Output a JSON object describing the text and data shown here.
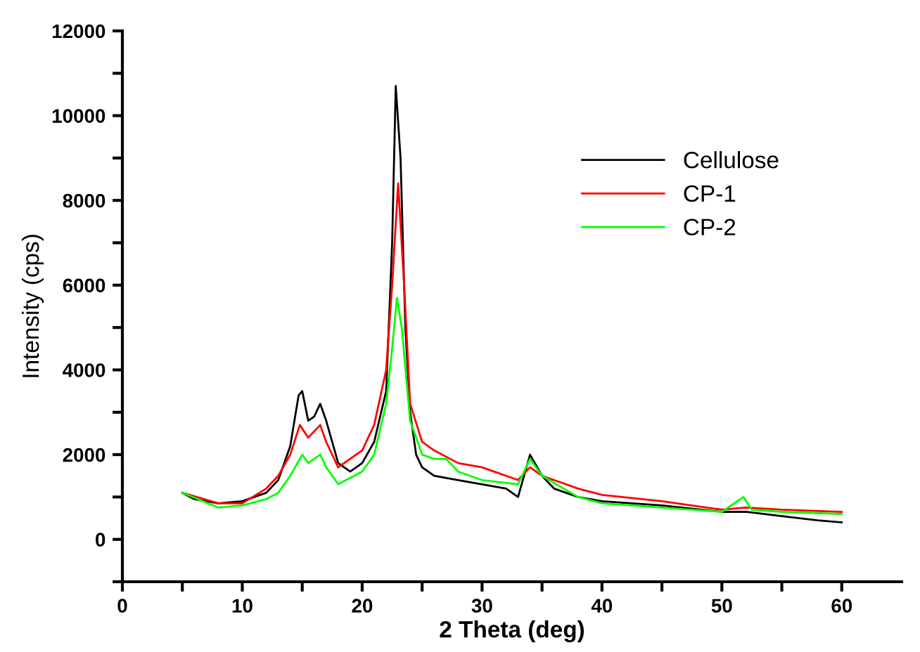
{
  "chart_data": {
    "type": "line",
    "xlabel": "2 Theta (deg)",
    "ylabel": "Intensity (cps)",
    "xlim": [
      0,
      65
    ],
    "ylim": [
      -1000,
      12000
    ],
    "xticks": [
      0,
      {
        "value": 5,
        "label": null
      },
      10,
      {
        "value": 15,
        "label": null
      },
      20,
      {
        "value": 25,
        "label": null
      },
      30,
      {
        "value": 35,
        "label": null
      },
      40,
      {
        "value": 45,
        "label": null
      },
      50,
      {
        "value": 55,
        "label": null
      },
      60
    ],
    "yticks": [
      {
        "value": -1000,
        "label": null
      },
      0,
      {
        "value": 1000,
        "label": null
      },
      2000,
      {
        "value": 3000,
        "label": null
      },
      4000,
      {
        "value": 5000,
        "label": null
      },
      6000,
      {
        "value": 7000,
        "label": null
      },
      8000,
      {
        "value": 9000,
        "label": null
      },
      10000,
      {
        "value": 11000,
        "label": null
      },
      12000
    ],
    "grid": false,
    "legend": "top right",
    "marker": "none",
    "line_style": "solid",
    "series": [
      {
        "name": "Cellulose",
        "color": "#000000",
        "x": [
          5,
          6,
          8,
          10,
          12,
          13,
          14,
          14.7,
          15,
          15.5,
          16,
          16.5,
          17,
          18,
          19,
          20,
          21,
          22,
          22.5,
          22.8,
          23.2,
          23.6,
          24,
          24.5,
          25,
          26,
          28,
          30,
          32,
          33,
          34,
          35,
          36,
          38,
          40,
          45,
          50,
          52,
          55,
          58,
          60
        ],
        "values": [
          1100,
          950,
          850,
          900,
          1100,
          1400,
          2200,
          3400,
          3500,
          2800,
          2900,
          3200,
          2800,
          1800,
          1600,
          1800,
          2300,
          3500,
          7000,
          10700,
          9000,
          5000,
          3000,
          2000,
          1700,
          1500,
          1400,
          1300,
          1200,
          1000,
          2000,
          1500,
          1200,
          1000,
          900,
          800,
          650,
          650,
          550,
          450,
          400
        ]
      },
      {
        "name": "CP-1",
        "color": "#ff0000",
        "x": [
          5,
          8,
          10,
          12,
          13,
          14,
          14.8,
          15.5,
          16.5,
          17,
          18,
          20,
          21,
          22,
          22.5,
          23,
          23.5,
          24,
          25,
          26,
          28,
          30,
          33,
          34,
          35,
          38,
          40,
          45,
          50,
          52,
          55,
          60
        ],
        "values": [
          1100,
          850,
          850,
          1200,
          1500,
          2000,
          2700,
          2400,
          2700,
          2300,
          1700,
          2100,
          2700,
          4000,
          6000,
          8400,
          6000,
          3200,
          2300,
          2100,
          1800,
          1700,
          1400,
          1700,
          1500,
          1200,
          1050,
          900,
          700,
          750,
          700,
          650
        ]
      },
      {
        "name": "CP-2",
        "color": "#00ff00",
        "x": [
          5,
          8,
          10,
          12,
          13,
          14,
          15,
          15.5,
          16.5,
          17,
          18,
          20,
          21,
          22,
          22.5,
          22.9,
          23.3,
          24,
          25,
          26,
          27,
          28,
          30,
          33,
          34,
          35,
          38,
          40,
          45,
          50,
          51.8,
          52.5,
          55,
          60
        ],
        "values": [
          1100,
          750,
          800,
          950,
          1100,
          1500,
          2000,
          1800,
          2000,
          1700,
          1300,
          1600,
          2000,
          3200,
          4500,
          5700,
          5000,
          2800,
          2000,
          1900,
          1900,
          1600,
          1400,
          1300,
          1900,
          1500,
          1000,
          850,
          750,
          650,
          1000,
          700,
          650,
          600
        ]
      }
    ]
  }
}
